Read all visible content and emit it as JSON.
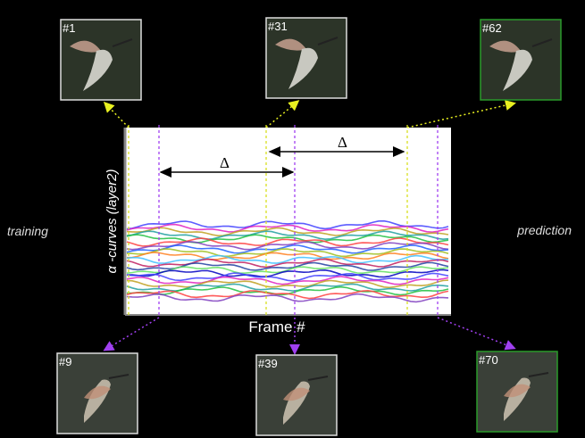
{
  "frames": [
    {
      "label": "#1"
    },
    {
      "label": "#31"
    },
    {
      "label": "#62"
    },
    {
      "label": "#9"
    },
    {
      "label": "#39"
    },
    {
      "label": "#70"
    }
  ],
  "side_labels": {
    "left": "training",
    "right": "prediction"
  },
  "axis": {
    "x_label": "Frame #",
    "y_label": "α -curves (layer2)"
  },
  "intervals": [
    "Δ",
    "Δ"
  ]
}
